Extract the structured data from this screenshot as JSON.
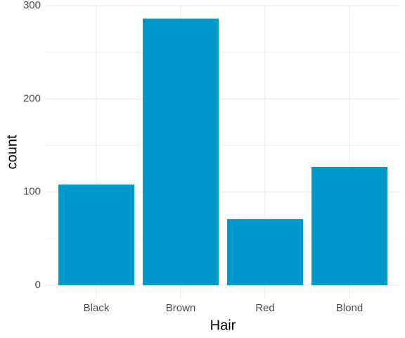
{
  "chart_data": {
    "type": "bar",
    "x_label": "Hair",
    "y_label": "count",
    "categories": [
      "Black",
      "Brown",
      "Red",
      "Blond"
    ],
    "values": [
      108,
      286,
      71,
      127
    ],
    "color": "#0099cc",
    "ylim": [
      -14.3,
      300.3
    ],
    "yticks": [
      0,
      100,
      200,
      300
    ],
    "grid": true
  }
}
